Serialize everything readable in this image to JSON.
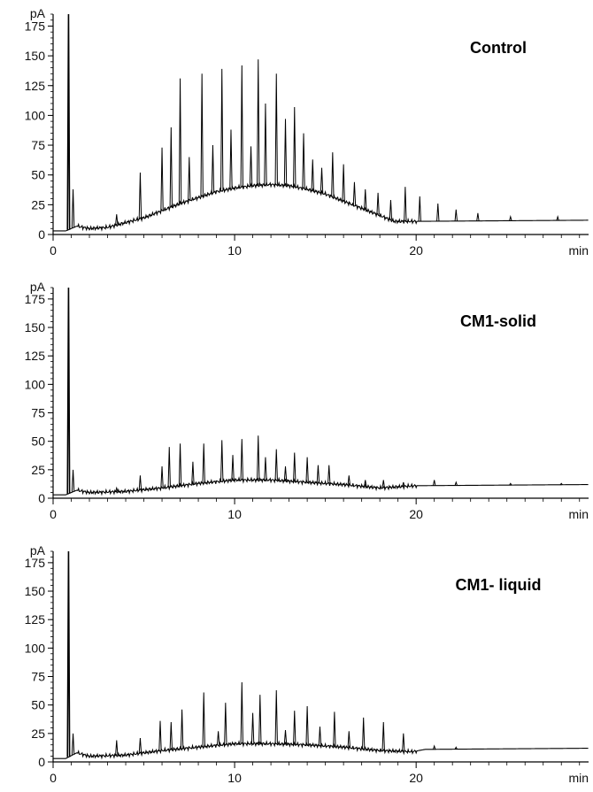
{
  "chart_data": [
    {
      "type": "line",
      "title": "Control",
      "ylabel": "pA",
      "xlabel": "min",
      "xlim": [
        0,
        29.5
      ],
      "ylim": [
        0,
        185
      ],
      "x_ticks": [
        0,
        10,
        20
      ],
      "y_ticks": [
        0,
        25,
        50,
        75,
        100,
        125,
        150,
        175
      ],
      "baseline": [
        [
          0,
          3
        ],
        [
          0.7,
          3
        ],
        [
          1.3,
          7
        ],
        [
          2,
          5
        ],
        [
          3,
          6
        ],
        [
          4,
          10
        ],
        [
          5,
          14
        ],
        [
          6,
          20
        ],
        [
          7,
          26
        ],
        [
          8,
          31
        ],
        [
          9,
          36
        ],
        [
          10,
          39
        ],
        [
          11,
          41
        ],
        [
          12,
          42
        ],
        [
          13,
          41
        ],
        [
          14,
          38
        ],
        [
          15,
          34
        ],
        [
          16,
          28
        ],
        [
          17,
          22
        ],
        [
          18,
          16
        ],
        [
          18.8,
          11
        ],
        [
          19.5,
          11
        ],
        [
          29.5,
          12
        ]
      ],
      "peaks": [
        [
          0.85,
          185
        ],
        [
          1.1,
          38
        ],
        [
          3.5,
          17
        ],
        [
          4.8,
          52
        ],
        [
          6,
          73
        ],
        [
          6.5,
          90
        ],
        [
          7,
          131
        ],
        [
          7.5,
          65
        ],
        [
          8.2,
          135
        ],
        [
          8.8,
          75
        ],
        [
          9.3,
          139
        ],
        [
          9.8,
          88
        ],
        [
          10.4,
          142
        ],
        [
          10.9,
          74
        ],
        [
          11.3,
          147
        ],
        [
          11.7,
          110
        ],
        [
          12.3,
          135
        ],
        [
          12.8,
          97
        ],
        [
          13.3,
          107
        ],
        [
          13.8,
          85
        ],
        [
          14.3,
          63
        ],
        [
          14.8,
          56
        ],
        [
          15.4,
          69
        ],
        [
          16,
          59
        ],
        [
          16.6,
          44
        ],
        [
          17.2,
          38
        ],
        [
          17.9,
          35
        ],
        [
          18.6,
          29
        ],
        [
          19.4,
          40
        ],
        [
          20.2,
          32
        ],
        [
          21.2,
          26
        ],
        [
          22.2,
          21
        ],
        [
          23.4,
          18
        ],
        [
          25.2,
          15
        ],
        [
          27.8,
          15
        ]
      ]
    },
    {
      "type": "line",
      "title": "CM1-solid",
      "ylabel": "pA",
      "xlabel": "min",
      "xlim": [
        0,
        29.5
      ],
      "ylim": [
        0,
        185
      ],
      "x_ticks": [
        0,
        10,
        20
      ],
      "y_ticks": [
        0,
        25,
        50,
        75,
        100,
        125,
        150,
        175
      ],
      "baseline": [
        [
          0,
          3
        ],
        [
          0.7,
          3
        ],
        [
          1.3,
          7
        ],
        [
          2,
          5
        ],
        [
          4,
          6
        ],
        [
          6,
          9
        ],
        [
          8,
          13
        ],
        [
          10,
          16
        ],
        [
          12,
          16
        ],
        [
          14,
          14
        ],
        [
          16,
          12
        ],
        [
          18,
          9
        ],
        [
          20,
          11
        ],
        [
          29.5,
          12
        ]
      ],
      "peaks": [
        [
          0.85,
          185
        ],
        [
          1.1,
          25
        ],
        [
          3.5,
          9
        ],
        [
          4.8,
          20
        ],
        [
          6,
          28
        ],
        [
          6.4,
          45
        ],
        [
          7,
          48
        ],
        [
          7.7,
          32
        ],
        [
          8.3,
          48
        ],
        [
          9.3,
          51
        ],
        [
          9.9,
          38
        ],
        [
          10.4,
          52
        ],
        [
          11.3,
          55
        ],
        [
          11.7,
          36
        ],
        [
          12.3,
          43
        ],
        [
          12.8,
          28
        ],
        [
          13.3,
          40
        ],
        [
          14,
          36
        ],
        [
          14.6,
          29
        ],
        [
          15.2,
          29
        ],
        [
          16.3,
          20
        ],
        [
          17.2,
          16
        ],
        [
          18.2,
          16
        ],
        [
          19.3,
          14
        ],
        [
          21,
          16
        ],
        [
          22.2,
          14
        ],
        [
          25.2,
          13
        ],
        [
          28,
          13
        ]
      ]
    },
    {
      "type": "line",
      "title": "CM1- liquid",
      "ylabel": "pA",
      "xlabel": "min",
      "xlim": [
        0,
        29.5
      ],
      "ylim": [
        0,
        185
      ],
      "x_ticks": [
        0,
        10,
        20
      ],
      "y_ticks": [
        0,
        25,
        50,
        75,
        100,
        125,
        150,
        175
      ],
      "baseline": [
        [
          0,
          3
        ],
        [
          0.7,
          3
        ],
        [
          1.3,
          8
        ],
        [
          2,
          5
        ],
        [
          4,
          6
        ],
        [
          6,
          10
        ],
        [
          8,
          13
        ],
        [
          10,
          16
        ],
        [
          12,
          16
        ],
        [
          14,
          15
        ],
        [
          16,
          13
        ],
        [
          18,
          10
        ],
        [
          19.8,
          9
        ],
        [
          20.5,
          11
        ],
        [
          29.5,
          12
        ]
      ],
      "peaks": [
        [
          0.85,
          185
        ],
        [
          1.1,
          25
        ],
        [
          3.5,
          19
        ],
        [
          4.8,
          21
        ],
        [
          5.9,
          36
        ],
        [
          6.5,
          35
        ],
        [
          7.1,
          46
        ],
        [
          8.3,
          61
        ],
        [
          9.1,
          27
        ],
        [
          9.5,
          52
        ],
        [
          10.4,
          70
        ],
        [
          11,
          43
        ],
        [
          11.4,
          59
        ],
        [
          12.3,
          63
        ],
        [
          12.8,
          28
        ],
        [
          13.3,
          45
        ],
        [
          14,
          49
        ],
        [
          14.7,
          31
        ],
        [
          15.5,
          44
        ],
        [
          16.3,
          27
        ],
        [
          17.1,
          39
        ],
        [
          18.2,
          35
        ],
        [
          19.3,
          25
        ],
        [
          21,
          14
        ],
        [
          22.2,
          13
        ]
      ]
    }
  ]
}
